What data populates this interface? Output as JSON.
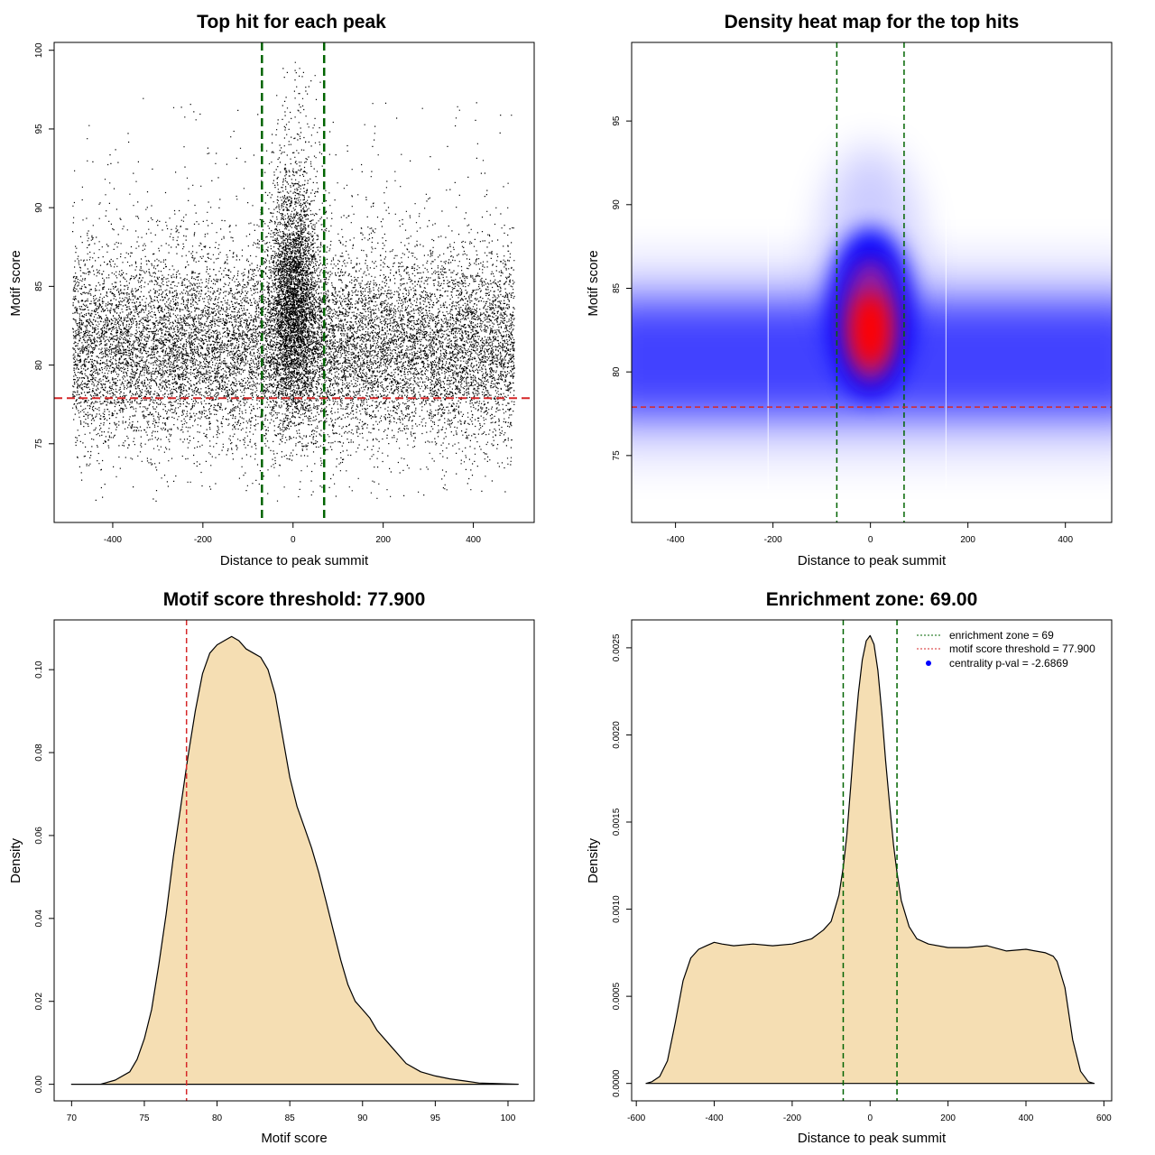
{
  "chart_data": [
    {
      "type": "scatter",
      "title": "Top hit for each peak",
      "xlabel": "Distance to peak summit",
      "ylabel": "Motif score",
      "xlim": [
        -530,
        535
      ],
      "ylim": [
        70,
        100.5
      ],
      "xticks": [
        -400,
        -200,
        0,
        200,
        400
      ],
      "yticks": [
        75,
        80,
        85,
        90,
        95,
        100
      ],
      "vlines": [
        -69,
        69
      ],
      "vline_color": "#006400",
      "hline": 77.9,
      "hline_color": "#d62728",
      "point_color": "#000000",
      "points_description": "~20000 points uniform over -490..490 with scores centred ~81 (range ~72-99), dense central cluster near 0 with scores up to ~99"
    },
    {
      "type": "heatmap",
      "title": "Density heat map for the top hits",
      "xlabel": "Distance to peak summit",
      "ylabel": "Motif score",
      "xlim": [
        -490,
        495
      ],
      "ylim": [
        71,
        99.7
      ],
      "xticks": [
        -400,
        -200,
        0,
        200,
        400
      ],
      "yticks": [
        75,
        80,
        85,
        90,
        95
      ],
      "vlines": [
        -69,
        69
      ],
      "vline_color": "#006400",
      "hline": 77.9,
      "hline_color": "#d62728",
      "colors": [
        "#ffffff",
        "#0000ff",
        "#ff0000"
      ]
    },
    {
      "type": "area",
      "title": "Motif score threshold: 77.900",
      "xlabel": "Motif score",
      "ylabel": "Density",
      "xlim": [
        68.8,
        101.8
      ],
      "ylim": [
        -0.004,
        0.112
      ],
      "xticks": [
        70,
        75,
        80,
        85,
        90,
        95,
        100
      ],
      "yticks": [
        0.0,
        0.02,
        0.04,
        0.06,
        0.08,
        0.1
      ],
      "ytick_labels": [
        "0.00",
        "0.02",
        "0.04",
        "0.06",
        "0.08",
        "0.10"
      ],
      "vline": 77.9,
      "vline_color": "#d62728",
      "fill": "#f5deb3",
      "x": [
        70,
        72,
        73,
        74,
        74.5,
        75,
        75.5,
        76,
        76.5,
        77,
        77.5,
        78,
        78.5,
        79,
        79.5,
        80,
        80.5,
        81,
        81.5,
        82,
        82.5,
        83,
        83.5,
        84,
        84.5,
        85,
        85.5,
        86,
        86.5,
        87,
        87.5,
        88,
        88.5,
        89,
        89.5,
        90,
        90.5,
        91,
        92,
        93,
        94,
        95,
        96,
        97,
        98,
        100.7
      ],
      "y": [
        0.0,
        0.0,
        0.001,
        0.003,
        0.006,
        0.011,
        0.018,
        0.029,
        0.041,
        0.055,
        0.067,
        0.079,
        0.09,
        0.099,
        0.104,
        0.106,
        0.107,
        0.108,
        0.107,
        0.105,
        0.104,
        0.103,
        0.1,
        0.094,
        0.084,
        0.074,
        0.067,
        0.062,
        0.057,
        0.051,
        0.044,
        0.037,
        0.03,
        0.024,
        0.02,
        0.018,
        0.016,
        0.013,
        0.009,
        0.005,
        0.003,
        0.002,
        0.0013,
        0.0008,
        0.0003,
        0.0
      ]
    },
    {
      "type": "area",
      "title": "Enrichment zone: 69.00",
      "xlabel": "Distance to peak summit",
      "ylabel": "Density",
      "xlim": [
        -612,
        620
      ],
      "ylim": [
        -0.0001,
        0.00266
      ],
      "xticks": [
        -600,
        -400,
        -200,
        0,
        200,
        400,
        600
      ],
      "yticks": [
        0.0,
        0.0005,
        0.001,
        0.0015,
        0.002,
        0.0025
      ],
      "ytick_labels": [
        "0.0000",
        "0.0005",
        "0.0010",
        "0.0015",
        "0.0020",
        "0.0025"
      ],
      "vlines": [
        -69,
        69
      ],
      "vline_color": "#006400",
      "fill": "#f5deb3",
      "x": [
        -575,
        -560,
        -540,
        -520,
        -500,
        -480,
        -460,
        -440,
        -420,
        -400,
        -380,
        -350,
        -300,
        -250,
        -200,
        -150,
        -120,
        -100,
        -80,
        -69,
        -60,
        -50,
        -40,
        -30,
        -20,
        -10,
        0,
        10,
        20,
        30,
        40,
        50,
        60,
        69,
        80,
        100,
        120,
        150,
        200,
        250,
        300,
        350,
        400,
        450,
        470,
        480,
        500,
        520,
        540,
        560,
        575
      ],
      "y": [
        0.0,
        1e-05,
        4e-05,
        0.00013,
        0.00035,
        0.00059,
        0.00072,
        0.00077,
        0.00079,
        0.00081,
        0.0008,
        0.00079,
        0.0008,
        0.00079,
        0.0008,
        0.00083,
        0.00088,
        0.00093,
        0.00108,
        0.00124,
        0.00142,
        0.0017,
        0.00199,
        0.00224,
        0.00243,
        0.00254,
        0.00257,
        0.00252,
        0.00237,
        0.00213,
        0.00185,
        0.0016,
        0.00137,
        0.00121,
        0.00105,
        0.0009,
        0.00083,
        0.0008,
        0.00078,
        0.00078,
        0.00079,
        0.00076,
        0.00077,
        0.00075,
        0.00073,
        0.0007,
        0.00055,
        0.00025,
        7e-05,
        1e-05,
        0.0
      ]
    }
  ],
  "legend": {
    "enrichment_label": "enrichment zone = 69",
    "threshold_label": "motif score threshold = 77.900",
    "centrality_label": "centrality p-val = -2.6869"
  }
}
